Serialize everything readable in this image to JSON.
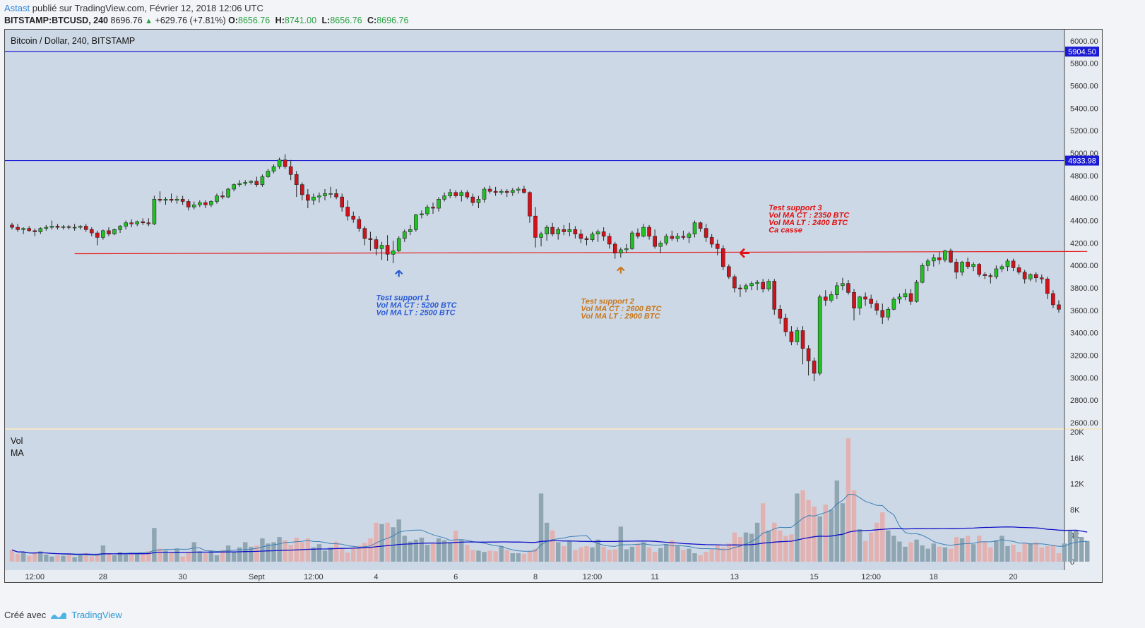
{
  "header": {
    "author": "Astast",
    "published": "publié sur TradingView.com, Février 12, 2018 12:06 UTC",
    "symbol": "BITSTAMP:BTCUSD, 240",
    "last": "8696.76",
    "change_arrow": "▲",
    "change": "+629.76 (+7.81%)",
    "o_label": "O:",
    "o": "8656.76",
    "h_label": "H:",
    "h": "8741.00",
    "l_label": "L:",
    "l": "8656.76",
    "c_label": "C:",
    "c": "8696.76"
  },
  "footer": {
    "created_with": "Créé avec",
    "brand": "TradingView",
    "logo_icon": "tradingview-logo-icon"
  },
  "chart_data": {
    "type": "candlestick",
    "title": "Bitcoin / Dollar, 240, BITSTAMP",
    "colors": {
      "up": "#22c122",
      "down": "#d0121b",
      "hline": "#1a1ad4",
      "support": "#e52020",
      "bg": "#cdd8e6",
      "vol_up": "#8fa6b2",
      "vol_down": "#e2b2b2",
      "ma_short": "#3a7fb5",
      "ma_long": "#1010c8"
    },
    "ylim": [
      2550,
      6100
    ],
    "y_ticks": [
      "6000.00",
      "5800.00",
      "5600.00",
      "5400.00",
      "5200.00",
      "5000.00",
      "4800.00",
      "4600.00",
      "4400.00",
      "4200.00",
      "4000.00",
      "3800.00",
      "3600.00",
      "3400.00",
      "3200.00",
      "3000.00",
      "2800.00",
      "2600.00"
    ],
    "x_ticks": [
      {
        "label": "12:00",
        "i": 4
      },
      {
        "label": "28",
        "i": 16
      },
      {
        "label": "30",
        "i": 30
      },
      {
        "label": "Sept",
        "i": 43
      },
      {
        "label": "12:00",
        "i": 53
      },
      {
        "label": "4",
        "i": 64
      },
      {
        "label": "6",
        "i": 78
      },
      {
        "label": "8",
        "i": 92
      },
      {
        "label": "12:00",
        "i": 102
      },
      {
        "label": "11",
        "i": 113
      },
      {
        "label": "13",
        "i": 127
      },
      {
        "label": "15",
        "i": 141
      },
      {
        "label": "12:00",
        "i": 151
      },
      {
        "label": "18",
        "i": 162
      },
      {
        "label": "20",
        "i": 176
      }
    ],
    "hlines": [
      {
        "value": 5904.5,
        "label": "5904.50"
      },
      {
        "value": 4933.98,
        "label": "4933.98"
      }
    ],
    "support_line": {
      "from_i": 11,
      "from": 4105,
      "to_i": 189,
      "to": 4125
    },
    "candles": [
      [
        4360,
        4380,
        4320,
        4340
      ],
      [
        4340,
        4370,
        4300,
        4320
      ],
      [
        4320,
        4340,
        4280,
        4330
      ],
      [
        4330,
        4350,
        4300,
        4310
      ],
      [
        4310,
        4330,
        4260,
        4300
      ],
      [
        4300,
        4340,
        4280,
        4330
      ],
      [
        4330,
        4360,
        4310,
        4340
      ],
      [
        4340,
        4400,
        4320,
        4350
      ],
      [
        4350,
        4370,
        4320,
        4340
      ],
      [
        4340,
        4360,
        4320,
        4345
      ],
      [
        4345,
        4360,
        4320,
        4340
      ],
      [
        4340,
        4370,
        4310,
        4340
      ],
      [
        4340,
        4360,
        4320,
        4350
      ],
      [
        4350,
        4370,
        4300,
        4320
      ],
      [
        4320,
        4340,
        4260,
        4290
      ],
      [
        4290,
        4310,
        4180,
        4250
      ],
      [
        4250,
        4320,
        4230,
        4310
      ],
      [
        4310,
        4340,
        4260,
        4280
      ],
      [
        4280,
        4330,
        4270,
        4320
      ],
      [
        4320,
        4360,
        4290,
        4350
      ],
      [
        4350,
        4400,
        4320,
        4380
      ],
      [
        4380,
        4410,
        4340,
        4370
      ],
      [
        4370,
        4400,
        4350,
        4390
      ],
      [
        4390,
        4420,
        4360,
        4380
      ],
      [
        4380,
        4420,
        4350,
        4370
      ],
      [
        4370,
        4620,
        4360,
        4590
      ],
      [
        4590,
        4660,
        4560,
        4580
      ],
      [
        4580,
        4610,
        4540,
        4590
      ],
      [
        4590,
        4640,
        4560,
        4580
      ],
      [
        4580,
        4620,
        4550,
        4590
      ],
      [
        4590,
        4620,
        4540,
        4570
      ],
      [
        4570,
        4590,
        4490,
        4520
      ],
      [
        4520,
        4570,
        4500,
        4540
      ],
      [
        4540,
        4580,
        4520,
        4560
      ],
      [
        4560,
        4580,
        4510,
        4540
      ],
      [
        4540,
        4580,
        4520,
        4570
      ],
      [
        4570,
        4640,
        4550,
        4620
      ],
      [
        4620,
        4660,
        4590,
        4610
      ],
      [
        4610,
        4690,
        4600,
        4680
      ],
      [
        4680,
        4730,
        4660,
        4720
      ],
      [
        4720,
        4760,
        4700,
        4730
      ],
      [
        4730,
        4760,
        4710,
        4740
      ],
      [
        4740,
        4760,
        4720,
        4750
      ],
      [
        4750,
        4790,
        4700,
        4720
      ],
      [
        4720,
        4810,
        4700,
        4790
      ],
      [
        4790,
        4860,
        4780,
        4840
      ],
      [
        4840,
        4900,
        4820,
        4880
      ],
      [
        4880,
        4960,
        4860,
        4940
      ],
      [
        4940,
        4990,
        4860,
        4880
      ],
      [
        4880,
        4940,
        4760,
        4810
      ],
      [
        4810,
        4840,
        4610,
        4720
      ],
      [
        4720,
        4740,
        4580,
        4630
      ],
      [
        4630,
        4680,
        4510,
        4580
      ],
      [
        4580,
        4640,
        4540,
        4610
      ],
      [
        4610,
        4650,
        4560,
        4620
      ],
      [
        4620,
        4680,
        4580,
        4640
      ],
      [
        4640,
        4700,
        4600,
        4640
      ],
      [
        4640,
        4680,
        4590,
        4610
      ],
      [
        4610,
        4640,
        4480,
        4520
      ],
      [
        4520,
        4580,
        4400,
        4440
      ],
      [
        4440,
        4480,
        4380,
        4410
      ],
      [
        4410,
        4440,
        4300,
        4330
      ],
      [
        4330,
        4350,
        4180,
        4240
      ],
      [
        4240,
        4300,
        4130,
        4230
      ],
      [
        4230,
        4260,
        4090,
        4150
      ],
      [
        4150,
        4210,
        4050,
        4180
      ],
      [
        4180,
        4270,
        4040,
        4100
      ],
      [
        4100,
        4220,
        4020,
        4130
      ],
      [
        4130,
        4260,
        4120,
        4240
      ],
      [
        4240,
        4320,
        4210,
        4300
      ],
      [
        4300,
        4360,
        4270,
        4320
      ],
      [
        4320,
        4460,
        4300,
        4450
      ],
      [
        4450,
        4490,
        4420,
        4460
      ],
      [
        4460,
        4540,
        4440,
        4520
      ],
      [
        4520,
        4560,
        4460,
        4510
      ],
      [
        4510,
        4610,
        4480,
        4590
      ],
      [
        4590,
        4650,
        4570,
        4620
      ],
      [
        4620,
        4680,
        4600,
        4650
      ],
      [
        4650,
        4670,
        4600,
        4620
      ],
      [
        4620,
        4670,
        4570,
        4650
      ],
      [
        4650,
        4670,
        4590,
        4610
      ],
      [
        4610,
        4640,
        4530,
        4560
      ],
      [
        4560,
        4620,
        4510,
        4590
      ],
      [
        4590,
        4700,
        4560,
        4680
      ],
      [
        4680,
        4710,
        4640,
        4660
      ],
      [
        4660,
        4700,
        4620,
        4650
      ],
      [
        4650,
        4680,
        4630,
        4660
      ],
      [
        4660,
        4680,
        4610,
        4650
      ],
      [
        4650,
        4690,
        4620,
        4670
      ],
      [
        4670,
        4700,
        4640,
        4680
      ],
      [
        4680,
        4710,
        4640,
        4650
      ],
      [
        4650,
        4660,
        4380,
        4440
      ],
      [
        4440,
        4520,
        4160,
        4250
      ],
      [
        4250,
        4300,
        4170,
        4280
      ],
      [
        4280,
        4360,
        4220,
        4340
      ],
      [
        4340,
        4380,
        4260,
        4280
      ],
      [
        4280,
        4340,
        4230,
        4320
      ],
      [
        4320,
        4360,
        4270,
        4300
      ],
      [
        4300,
        4380,
        4260,
        4320
      ],
      [
        4320,
        4350,
        4240,
        4280
      ],
      [
        4280,
        4320,
        4200,
        4240
      ],
      [
        4240,
        4260,
        4180,
        4230
      ],
      [
        4230,
        4300,
        4210,
        4280
      ],
      [
        4280,
        4320,
        4210,
        4300
      ],
      [
        4300,
        4340,
        4220,
        4260
      ],
      [
        4260,
        4290,
        4150,
        4190
      ],
      [
        4190,
        4210,
        4060,
        4110
      ],
      [
        4110,
        4160,
        4070,
        4140
      ],
      [
        4140,
        4190,
        4110,
        4150
      ],
      [
        4150,
        4310,
        4140,
        4290
      ],
      [
        4290,
        4330,
        4240,
        4260
      ],
      [
        4260,
        4370,
        4250,
        4340
      ],
      [
        4340,
        4360,
        4230,
        4260
      ],
      [
        4260,
        4320,
        4150,
        4170
      ],
      [
        4170,
        4220,
        4110,
        4200
      ],
      [
        4200,
        4280,
        4180,
        4260
      ],
      [
        4260,
        4310,
        4220,
        4240
      ],
      [
        4240,
        4290,
        4210,
        4260
      ],
      [
        4260,
        4310,
        4230,
        4250
      ],
      [
        4250,
        4300,
        4200,
        4280
      ],
      [
        4280,
        4400,
        4250,
        4380
      ],
      [
        4380,
        4390,
        4300,
        4330
      ],
      [
        4330,
        4370,
        4210,
        4250
      ],
      [
        4250,
        4280,
        4160,
        4190
      ],
      [
        4190,
        4230,
        4090,
        4150
      ],
      [
        4150,
        4180,
        3960,
        3990
      ],
      [
        3990,
        4010,
        3880,
        3900
      ],
      [
        3900,
        3920,
        3760,
        3800
      ],
      [
        3800,
        3830,
        3720,
        3790
      ],
      [
        3790,
        3840,
        3760,
        3820
      ],
      [
        3820,
        3860,
        3780,
        3840
      ],
      [
        3840,
        3870,
        3780,
        3850
      ],
      [
        3850,
        3880,
        3760,
        3790
      ],
      [
        3790,
        3880,
        3770,
        3860
      ],
      [
        3860,
        3880,
        3560,
        3610
      ],
      [
        3610,
        3650,
        3480,
        3530
      ],
      [
        3530,
        3570,
        3370,
        3410
      ],
      [
        3410,
        3460,
        3290,
        3320
      ],
      [
        3320,
        3450,
        3290,
        3420
      ],
      [
        3420,
        3460,
        3120,
        3260
      ],
      [
        3260,
        3290,
        3020,
        3150
      ],
      [
        3150,
        3180,
        2970,
        3040
      ],
      [
        3040,
        3740,
        3020,
        3720
      ],
      [
        3720,
        3780,
        3640,
        3690
      ],
      [
        3690,
        3770,
        3670,
        3740
      ],
      [
        3740,
        3850,
        3700,
        3820
      ],
      [
        3820,
        3890,
        3780,
        3840
      ],
      [
        3840,
        3870,
        3740,
        3760
      ],
      [
        3760,
        3790,
        3510,
        3620
      ],
      [
        3620,
        3730,
        3560,
        3720
      ],
      [
        3720,
        3760,
        3640,
        3700
      ],
      [
        3700,
        3740,
        3620,
        3660
      ],
      [
        3660,
        3690,
        3560,
        3600
      ],
      [
        3600,
        3660,
        3480,
        3540
      ],
      [
        3540,
        3630,
        3510,
        3610
      ],
      [
        3610,
        3720,
        3600,
        3700
      ],
      [
        3700,
        3750,
        3660,
        3720
      ],
      [
        3720,
        3790,
        3690,
        3750
      ],
      [
        3750,
        3790,
        3650,
        3680
      ],
      [
        3680,
        3870,
        3670,
        3850
      ],
      [
        3850,
        4020,
        3840,
        4000
      ],
      [
        4000,
        4060,
        3950,
        4040
      ],
      [
        4040,
        4100,
        3990,
        4070
      ],
      [
        4070,
        4120,
        4010,
        4050
      ],
      [
        4050,
        4140,
        4030,
        4130
      ],
      [
        4130,
        4150,
        4020,
        4030
      ],
      [
        4030,
        4060,
        3880,
        3940
      ],
      [
        3940,
        4040,
        3910,
        4030
      ],
      [
        4030,
        4070,
        3970,
        3990
      ],
      [
        3990,
        4030,
        3950,
        4010
      ],
      [
        4010,
        4020,
        3900,
        3920
      ],
      [
        3920,
        3940,
        3880,
        3910
      ],
      [
        3910,
        3930,
        3840,
        3900
      ],
      [
        3900,
        4000,
        3880,
        3970
      ],
      [
        3970,
        4010,
        3940,
        3990
      ],
      [
        3990,
        4060,
        3950,
        4040
      ],
      [
        4040,
        4060,
        3950,
        3980
      ],
      [
        3980,
        4010,
        3920,
        3940
      ],
      [
        3940,
        3960,
        3840,
        3880
      ],
      [
        3880,
        3930,
        3860,
        3920
      ],
      [
        3920,
        3940,
        3850,
        3890
      ],
      [
        3890,
        3920,
        3840,
        3880
      ],
      [
        3880,
        3900,
        3700,
        3750
      ],
      [
        3750,
        3780,
        3620,
        3650
      ],
      [
        3650,
        3690,
        3580,
        3610
      ]
    ],
    "volume_panel": {
      "labels": [
        "Vol",
        "MA"
      ],
      "ylim": [
        0,
        20000
      ],
      "y_ticks": [
        {
          "label": "20K",
          "v": 20000
        },
        {
          "label": "16K",
          "v": 16000
        },
        {
          "label": "12K",
          "v": 12000
        },
        {
          "label": "8K",
          "v": 8000
        },
        {
          "label": "4K",
          "v": 4000
        },
        {
          "label": "0",
          "v": 0
        }
      ],
      "volumes": [
        1800,
        1200,
        1500,
        900,
        1300,
        1600,
        1100,
        800,
        1000,
        900,
        1200,
        700,
        1000,
        1300,
        800,
        1100,
        2500,
        1300,
        1000,
        1500,
        1100,
        1400,
        1200,
        1300,
        1600,
        5200,
        2000,
        1700,
        1400,
        1900,
        800,
        1500,
        3000,
        1600,
        1300,
        1700,
        1000,
        1800,
        2500,
        1500,
        2200,
        3000,
        2300,
        2500,
        3600,
        2800,
        3000,
        3800,
        3300,
        2600,
        3700,
        3000,
        3600,
        2200,
        2700,
        1700,
        2200,
        3100,
        2100,
        1400,
        2200,
        2500,
        2900,
        3600,
        6000,
        5800,
        6000,
        5300,
        6500,
        4000,
        3100,
        3400,
        3700,
        2600,
        2800,
        3600,
        3300,
        3000,
        4800,
        3300,
        2600,
        1800,
        1700,
        1500,
        1700,
        1600,
        2400,
        1800,
        1300,
        1300,
        1200,
        1600,
        2000,
        10500,
        6000,
        4800,
        3000,
        2400,
        3100,
        1800,
        2200,
        2400,
        2200,
        3400,
        2300,
        1800,
        1900,
        5400,
        1900,
        2300,
        2800,
        3000,
        2200,
        1500,
        2100,
        2700,
        3300,
        2400,
        1800,
        2000,
        1300,
        1000,
        1500,
        1900,
        2500,
        2200,
        2800,
        4500,
        3800,
        4500,
        4300,
        6000,
        9000,
        4800,
        6000,
        4800,
        4000,
        4200,
        10500,
        11000,
        9500,
        8500,
        7000,
        8800,
        8000,
        12500,
        9000,
        19000,
        11000,
        5000,
        3200,
        4500,
        6000,
        7600,
        4800,
        4000,
        3100,
        2300,
        3000,
        3400,
        2500,
        2000,
        2800,
        2300,
        2200,
        2000,
        3800,
        3600,
        4000,
        2700,
        4000,
        3000,
        2200,
        3300,
        4000,
        2400,
        2600,
        1500,
        2900,
        2800,
        3000,
        2200,
        2400,
        2600,
        1300,
        2800,
        4900,
        4900,
        3800,
        3200
      ]
    },
    "annotations": [
      {
        "lines": [
          "Test support 1",
          "Vol MA CT : 5200 BTC",
          "Vol MA LT : 2500 BTC"
        ],
        "color": "#2a5bd6",
        "i": 64,
        "y": 3690,
        "arrow": {
          "i": 68,
          "dir": "up",
          "y": 3955
        }
      },
      {
        "lines": [
          "Test support 2",
          "Vol MA CT : 2600 BTC",
          "Vol MA LT : 2900 BTC"
        ],
        "color": "#c8781c",
        "i": 100,
        "y": 3660,
        "arrow": {
          "i": 107,
          "dir": "up",
          "y": 3985
        }
      },
      {
        "lines": [
          "Test support 3",
          "Vol MA CT : 2350 BTC",
          "Vol MA LT : 2400 BTC",
          "Ca casse"
        ],
        "color": "#e01010",
        "i": 133,
        "y": 4490,
        "arrow": {
          "i": 128,
          "dir": "left",
          "y": 4110
        }
      }
    ]
  }
}
